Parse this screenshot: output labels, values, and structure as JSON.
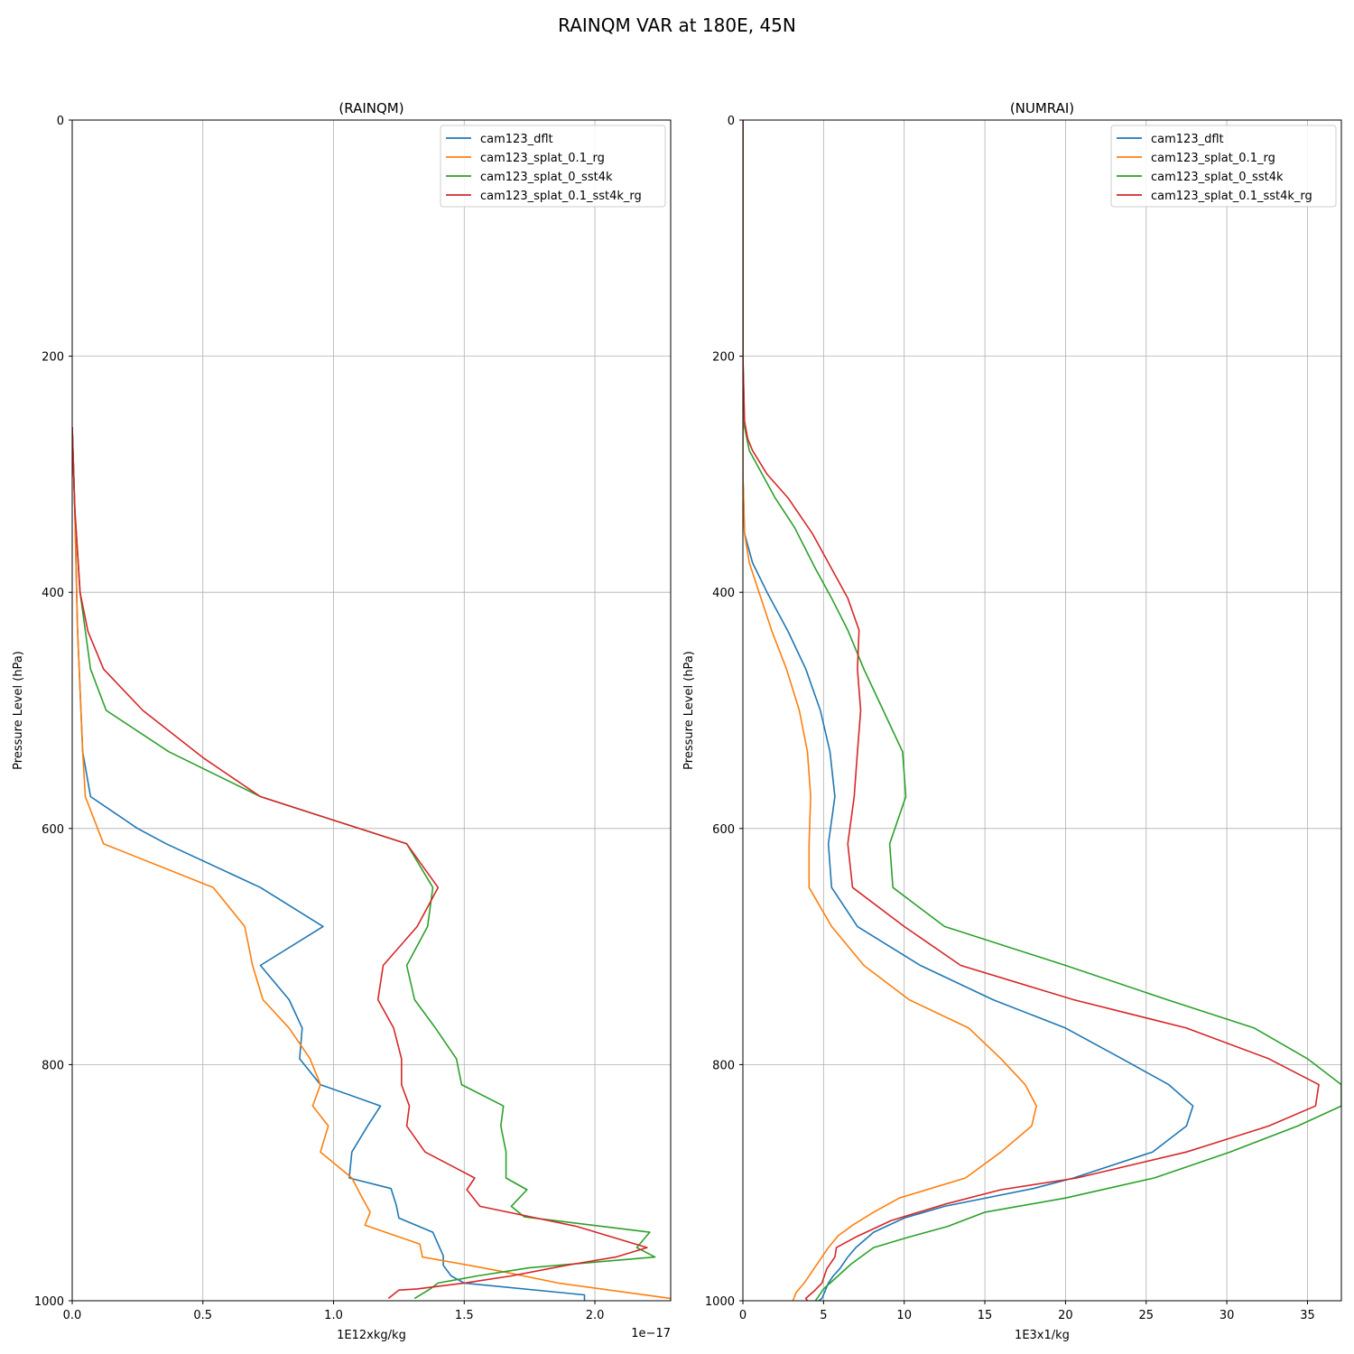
{
  "figure": {
    "title": "RAINQM VAR at 180E, 45N"
  },
  "colors": {
    "cam123_dflt": "#1f77b4",
    "cam123_splat_0.1_rg": "#ff7f0e",
    "cam123_splat_0_sst4k": "#2ca02c",
    "cam123_splat_0.1_sst4k_rg": "#d62728",
    "grid": "#b0b0b0"
  },
  "chart_data": [
    {
      "type": "line",
      "title": "(RAINQM)",
      "xlabel": "1E12xkg/kg",
      "ylabel": "Pressure Level (hPa)",
      "x_offset_text": "1e−17",
      "xlim": [
        0,
        2.29
      ],
      "ylim": [
        1000,
        0
      ],
      "y_inverted": true,
      "grid": true,
      "legend_location": "upper right",
      "xticks": [
        0,
        0.5,
        1.0,
        1.5,
        2.0
      ],
      "xtick_labels": [
        "0.0",
        "0.5",
        "1.0",
        "1.5",
        "2.0"
      ],
      "yticks": [
        0,
        200,
        400,
        600,
        800,
        1000
      ],
      "ytick_labels": [
        "0",
        "200",
        "400",
        "600",
        "800",
        "1000"
      ],
      "series": [
        {
          "name": "cam123_dflt",
          "color": "#1f77b4",
          "points": [
            [
              0,
              260
            ],
            [
              0.01,
              330
            ],
            [
              0.02,
              430
            ],
            [
              0.04,
              535
            ],
            [
              0.07,
              573
            ],
            [
              0.25,
              600
            ],
            [
              0.36,
              613
            ],
            [
              0.72,
              650
            ],
            [
              0.96,
              683
            ],
            [
              0.72,
              716
            ],
            [
              0.83,
              745
            ],
            [
              0.88,
              769
            ],
            [
              0.87,
              795
            ],
            [
              0.95,
              817
            ],
            [
              1.18,
              835
            ],
            [
              1.13,
              852
            ],
            [
              1.07,
              874
            ],
            [
              1.06,
              896
            ],
            [
              1.22,
              905
            ],
            [
              1.24,
              919
            ],
            [
              1.25,
              930
            ],
            [
              1.38,
              942
            ],
            [
              1.42,
              962
            ],
            [
              1.42,
              970
            ],
            [
              1.45,
              979
            ],
            [
              1.5,
              985
            ],
            [
              1.96,
              995
            ],
            [
              1.96,
              1000
            ]
          ]
        },
        {
          "name": "cam123_splat_0.1_rg",
          "color": "#ff7f0e",
          "points": [
            [
              0,
              260
            ],
            [
              0.01,
              330
            ],
            [
              0.02,
              430
            ],
            [
              0.04,
              535
            ],
            [
              0.05,
              573
            ],
            [
              0.12,
              613
            ],
            [
              0.54,
              650
            ],
            [
              0.66,
              683
            ],
            [
              0.69,
              716
            ],
            [
              0.73,
              745
            ],
            [
              0.83,
              769
            ],
            [
              0.91,
              795
            ],
            [
              0.95,
              817
            ],
            [
              0.92,
              835
            ],
            [
              0.98,
              852
            ],
            [
              0.95,
              874
            ],
            [
              1.07,
              896
            ],
            [
              1.11,
              913
            ],
            [
              1.14,
              925
            ],
            [
              1.12,
              936
            ],
            [
              1.33,
              952
            ],
            [
              1.34,
              963
            ],
            [
              1.52,
              970
            ],
            [
              1.64,
              975
            ],
            [
              1.86,
              985
            ],
            [
              2.29,
              998
            ],
            [
              2.29,
              1000
            ]
          ]
        },
        {
          "name": "cam123_splat_0_sst4k",
          "color": "#2ca02c",
          "points": [
            [
              0,
              260
            ],
            [
              0.01,
              330
            ],
            [
              0.03,
              400
            ],
            [
              0.07,
              465
            ],
            [
              0.13,
              500
            ],
            [
              0.37,
              535
            ],
            [
              0.72,
              573
            ],
            [
              1.28,
              613
            ],
            [
              1.38,
              650
            ],
            [
              1.36,
              683
            ],
            [
              1.28,
              716
            ],
            [
              1.31,
              745
            ],
            [
              1.39,
              769
            ],
            [
              1.47,
              795
            ],
            [
              1.49,
              817
            ],
            [
              1.65,
              835
            ],
            [
              1.64,
              852
            ],
            [
              1.66,
              874
            ],
            [
              1.66,
              896
            ],
            [
              1.74,
              906
            ],
            [
              1.68,
              920
            ],
            [
              1.73,
              929
            ],
            [
              2.21,
              942
            ],
            [
              2.16,
              955
            ],
            [
              2.23,
              963
            ],
            [
              1.75,
              972
            ],
            [
              1.55,
              979
            ],
            [
              1.4,
              985
            ],
            [
              1.37,
              990
            ],
            [
              1.31,
              998
            ]
          ]
        },
        {
          "name": "cam123_splat_0.1_sst4k_rg",
          "color": "#d62728",
          "points": [
            [
              0,
              260
            ],
            [
              0.01,
              330
            ],
            [
              0.03,
              400
            ],
            [
              0.06,
              433
            ],
            [
              0.12,
              465
            ],
            [
              0.27,
              500
            ],
            [
              0.5,
              540
            ],
            [
              0.72,
              573
            ],
            [
              1.28,
              613
            ],
            [
              1.4,
              650
            ],
            [
              1.32,
              683
            ],
            [
              1.19,
              716
            ],
            [
              1.17,
              745
            ],
            [
              1.23,
              769
            ],
            [
              1.26,
              795
            ],
            [
              1.26,
              817
            ],
            [
              1.29,
              835
            ],
            [
              1.28,
              852
            ],
            [
              1.35,
              874
            ],
            [
              1.54,
              896
            ],
            [
              1.51,
              906
            ],
            [
              1.56,
              920
            ],
            [
              1.93,
              937
            ],
            [
              2.2,
              955
            ],
            [
              2.08,
              963
            ],
            [
              1.89,
              970
            ],
            [
              1.68,
              979
            ],
            [
              1.5,
              985
            ],
            [
              1.32,
              990
            ],
            [
              1.25,
              991
            ],
            [
              1.21,
              998
            ]
          ]
        }
      ]
    },
    {
      "type": "line",
      "title": "(NUMRAI)",
      "xlabel": "1E3x1/kg",
      "ylabel": "Pressure Level (hPa)",
      "xlim": [
        0,
        37.1
      ],
      "ylim": [
        1000,
        0
      ],
      "y_inverted": true,
      "grid": true,
      "legend_location": "upper right",
      "xticks": [
        0,
        5,
        10,
        15,
        20,
        25,
        30,
        35
      ],
      "xtick_labels": [
        "0",
        "5",
        "10",
        "15",
        "20",
        "25",
        "30",
        "35"
      ],
      "yticks": [
        0,
        200,
        400,
        600,
        800,
        1000
      ],
      "ytick_labels": [
        "0",
        "200",
        "400",
        "600",
        "800",
        "1000"
      ],
      "series": [
        {
          "name": "cam123_dflt",
          "color": "#1f77b4",
          "points": [
            [
              0,
              0
            ],
            [
              0,
              300
            ],
            [
              0.1,
              350
            ],
            [
              0.6,
              375
            ],
            [
              1.5,
              400
            ],
            [
              2.8,
              433
            ],
            [
              3.9,
              465
            ],
            [
              4.8,
              500
            ],
            [
              5.4,
              535
            ],
            [
              5.7,
              573
            ],
            [
              5.3,
              613
            ],
            [
              5.5,
              650
            ],
            [
              7.1,
              683
            ],
            [
              11,
              716
            ],
            [
              15.5,
              745
            ],
            [
              20,
              769
            ],
            [
              23.5,
              795
            ],
            [
              26.4,
              817
            ],
            [
              27.9,
              835
            ],
            [
              27.5,
              852
            ],
            [
              25.4,
              874
            ],
            [
              20.5,
              896
            ],
            [
              18,
              905
            ],
            [
              12.5,
              920
            ],
            [
              10,
              930
            ],
            [
              8.1,
              942
            ],
            [
              7,
              955
            ],
            [
              6.5,
              963
            ],
            [
              6,
              973
            ],
            [
              5.6,
              979
            ],
            [
              5.3,
              985
            ],
            [
              4.9,
              998
            ],
            [
              4.7,
              1000
            ]
          ]
        },
        {
          "name": "cam123_splat_0.1_rg",
          "color": "#ff7f0e",
          "points": [
            [
              0,
              0
            ],
            [
              0,
              300
            ],
            [
              0.1,
              350
            ],
            [
              0.4,
              375
            ],
            [
              1,
              400
            ],
            [
              1.8,
              433
            ],
            [
              2.7,
              465
            ],
            [
              3.5,
              500
            ],
            [
              4,
              535
            ],
            [
              4.2,
              573
            ],
            [
              4.1,
              613
            ],
            [
              4.1,
              650
            ],
            [
              5.5,
              683
            ],
            [
              7.5,
              716
            ],
            [
              10.3,
              745
            ],
            [
              14,
              769
            ],
            [
              16,
              795
            ],
            [
              17.5,
              817
            ],
            [
              18.2,
              835
            ],
            [
              17.9,
              852
            ],
            [
              16,
              874
            ],
            [
              13.8,
              896
            ],
            [
              9.7,
              913
            ],
            [
              8.1,
              925
            ],
            [
              6.8,
              936
            ],
            [
              5.9,
              945
            ],
            [
              5.3,
              955
            ],
            [
              4.9,
              963
            ],
            [
              4.4,
              973
            ],
            [
              3.8,
              985
            ],
            [
              3.3,
              993
            ],
            [
              3.1,
              1000
            ]
          ]
        },
        {
          "name": "cam123_splat_0_sst4k",
          "color": "#2ca02c",
          "points": [
            [
              0,
              0
            ],
            [
              0,
              200
            ],
            [
              0.1,
              260
            ],
            [
              0.4,
              280
            ],
            [
              1.2,
              300
            ],
            [
              2,
              320
            ],
            [
              3.2,
              345
            ],
            [
              4.5,
              380
            ],
            [
              5.5,
              405
            ],
            [
              6.5,
              432
            ],
            [
              7.5,
              465
            ],
            [
              8.7,
              500
            ],
            [
              9.9,
              535
            ],
            [
              10.1,
              573
            ],
            [
              9.1,
              613
            ],
            [
              9.3,
              650
            ],
            [
              12.5,
              683
            ],
            [
              20,
              716
            ],
            [
              26.3,
              745
            ],
            [
              31.7,
              769
            ],
            [
              35,
              795
            ],
            [
              37.1,
              817
            ],
            [
              37.1,
              835
            ],
            [
              34.4,
              852
            ],
            [
              30.2,
              874
            ],
            [
              25.5,
              896
            ],
            [
              20,
              913
            ],
            [
              15,
              925
            ],
            [
              12.7,
              937
            ],
            [
              10.3,
              946
            ],
            [
              8.1,
              955
            ],
            [
              6.7,
              969
            ],
            [
              5.9,
              979
            ],
            [
              5,
              990
            ],
            [
              4.6,
              998
            ],
            [
              4.5,
              1000
            ]
          ]
        },
        {
          "name": "cam123_splat_0.1_sst4k_rg",
          "color": "#d62728",
          "points": [
            [
              0,
              0
            ],
            [
              0,
              200
            ],
            [
              0.1,
              255
            ],
            [
              0.3,
              270
            ],
            [
              0.6,
              280
            ],
            [
              1.5,
              300
            ],
            [
              2.8,
              320
            ],
            [
              4.3,
              350
            ],
            [
              5.5,
              380
            ],
            [
              6.5,
              405
            ],
            [
              7.2,
              432
            ],
            [
              7.1,
              465
            ],
            [
              7.3,
              500
            ],
            [
              7.1,
              535
            ],
            [
              6.9,
              573
            ],
            [
              6.5,
              613
            ],
            [
              6.8,
              650
            ],
            [
              10,
              683
            ],
            [
              13.5,
              716
            ],
            [
              20.5,
              745
            ],
            [
              27.5,
              769
            ],
            [
              32.6,
              795
            ],
            [
              35.7,
              817
            ],
            [
              35.5,
              835
            ],
            [
              32.6,
              852
            ],
            [
              27.5,
              874
            ],
            [
              20.7,
              896
            ],
            [
              16,
              906
            ],
            [
              12.6,
              918
            ],
            [
              9.2,
              932
            ],
            [
              7,
              946
            ],
            [
              5.8,
              955
            ],
            [
              5.7,
              963
            ],
            [
              5.2,
              973
            ],
            [
              4.9,
              985
            ],
            [
              4.4,
              992
            ],
            [
              3.9,
              998
            ],
            [
              4,
              1000
            ]
          ]
        }
      ]
    }
  ]
}
